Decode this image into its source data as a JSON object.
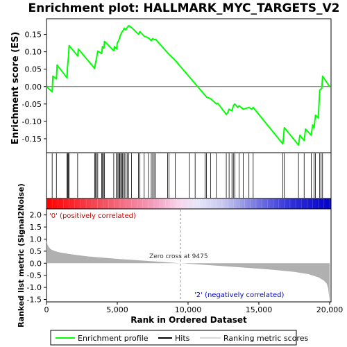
{
  "chart_data": {
    "type": "line",
    "title": "Enrichment plot: HALLMARK_MYC_TARGETS_V2",
    "es_panel": {
      "ylabel": "Enrichment score (ES)",
      "ylim": [
        -0.19,
        0.195
      ],
      "yticks": [
        -0.15,
        -0.1,
        -0.05,
        0.0,
        0.05,
        0.1,
        0.15
      ],
      "ytick_labels": [
        "-0.15",
        "-0.10",
        "-0.05",
        "0.00",
        "0.05",
        "0.10",
        "0.15"
      ],
      "series": [
        {
          "name": "Enrichment profile",
          "color": "#00ff00",
          "x": [
            0,
            400,
            450,
            700,
            750,
            1450,
            1480,
            1550,
            1600,
            2200,
            2250,
            3400,
            3450,
            3550,
            3620,
            3900,
            3950,
            4050,
            4100,
            4750,
            4800,
            4950,
            5000,
            5100,
            5200,
            5300,
            5400,
            5500,
            5600,
            5700,
            5800,
            6000,
            6500,
            6600,
            6900,
            7200,
            7400,
            7500,
            7600,
            7700,
            8600,
            9100,
            11200,
            11300,
            11600,
            12000,
            12100,
            12700,
            12800,
            12900,
            13100,
            13200,
            13300,
            13500,
            13600,
            13900,
            14300,
            14500,
            14600,
            16700,
            16800,
            17800,
            17900,
            18200,
            18300,
            18700,
            18800,
            18900,
            19000,
            19200,
            19300,
            19450,
            19500,
            20000
          ],
          "y": [
            0.0,
            -0.015,
            0.03,
            0.022,
            0.062,
            0.025,
            0.055,
            0.085,
            0.118,
            0.088,
            0.108,
            0.052,
            0.065,
            0.085,
            0.102,
            0.095,
            0.115,
            0.11,
            0.13,
            0.103,
            0.115,
            0.108,
            0.125,
            0.132,
            0.145,
            0.155,
            0.16,
            0.168,
            0.163,
            0.17,
            0.175,
            0.17,
            0.15,
            0.158,
            0.145,
            0.14,
            0.132,
            0.138,
            0.135,
            0.136,
            0.095,
            0.075,
            -0.025,
            -0.03,
            -0.035,
            -0.05,
            -0.048,
            -0.08,
            -0.075,
            -0.065,
            -0.07,
            -0.055,
            -0.05,
            -0.06,
            -0.055,
            -0.065,
            -0.06,
            -0.065,
            -0.06,
            -0.165,
            -0.118,
            -0.168,
            -0.14,
            -0.155,
            -0.122,
            -0.14,
            -0.11,
            -0.118,
            -0.082,
            -0.09,
            -0.01,
            -0.005,
            0.03,
            0.0
          ]
        }
      ]
    },
    "hits": {
      "name": "Hits",
      "color": "#000000",
      "x": [
        400,
        700,
        1450,
        1500,
        1550,
        1600,
        2200,
        3400,
        3450,
        3550,
        3620,
        3900,
        3950,
        4050,
        4100,
        4750,
        4950,
        5000,
        5100,
        5150,
        5200,
        5300,
        5350,
        5400,
        5500,
        5600,
        5700,
        5800,
        6000,
        6500,
        6600,
        6900,
        7200,
        7400,
        7500,
        7600,
        7700,
        8550,
        8650,
        9100,
        10100,
        10500,
        11200,
        11300,
        11600,
        12000,
        12700,
        12900,
        13100,
        13200,
        13300,
        13600,
        13900,
        14300,
        14600,
        16700,
        16800,
        17800,
        18200,
        18700,
        18900,
        19000,
        19300,
        19400,
        19500
      ]
    },
    "rank_bar": {
      "label_left": "'0' (positively correlated)",
      "label_right": "'2' (negatively correlated)"
    },
    "metric_panel": {
      "ylabel": "Ranked list metric (Signal2Noise)",
      "ylim": [
        -1.6,
        2.25
      ],
      "yticks": [
        -1.5,
        -1.0,
        -0.5,
        0.0,
        0.5,
        1.0,
        1.5,
        2.0
      ],
      "ytick_labels": [
        "-1.5",
        "-1.0",
        "-0.5",
        "0.0",
        "0.5",
        "1.0",
        "1.5",
        "2.0"
      ],
      "curve_x": [
        0,
        50,
        150,
        300,
        600,
        1000,
        2000,
        3000,
        5000,
        7000,
        9475,
        12000,
        14000,
        16000,
        17500,
        18500,
        19200,
        19600,
        19800,
        19900,
        20000
      ],
      "curve_y": [
        0.95,
        0.8,
        0.68,
        0.58,
        0.5,
        0.44,
        0.35,
        0.28,
        0.18,
        0.1,
        0.0,
        -0.1,
        -0.18,
        -0.27,
        -0.36,
        -0.45,
        -0.58,
        -0.72,
        -0.85,
        -1.05,
        -1.6
      ],
      "zero_cross_label": "Zero cross at 9475",
      "zero_cross": 9475,
      "fill_color": "#b0b0b0"
    },
    "xaxis": {
      "label": "Rank in Ordered Dataset",
      "xlim": [
        0,
        20100
      ],
      "ticks": [
        0,
        5000,
        10000,
        15000,
        20000
      ],
      "tick_labels": [
        "0",
        "5,000",
        "10,000",
        "15,000",
        "20,000"
      ]
    },
    "legend": {
      "position": "bottom",
      "items": [
        {
          "label": "Enrichment profile",
          "color": "#00ff00"
        },
        {
          "label": "Hits",
          "color": "#000000"
        },
        {
          "label": "Ranking metric scores",
          "color": "#b0b0b0"
        }
      ]
    }
  }
}
